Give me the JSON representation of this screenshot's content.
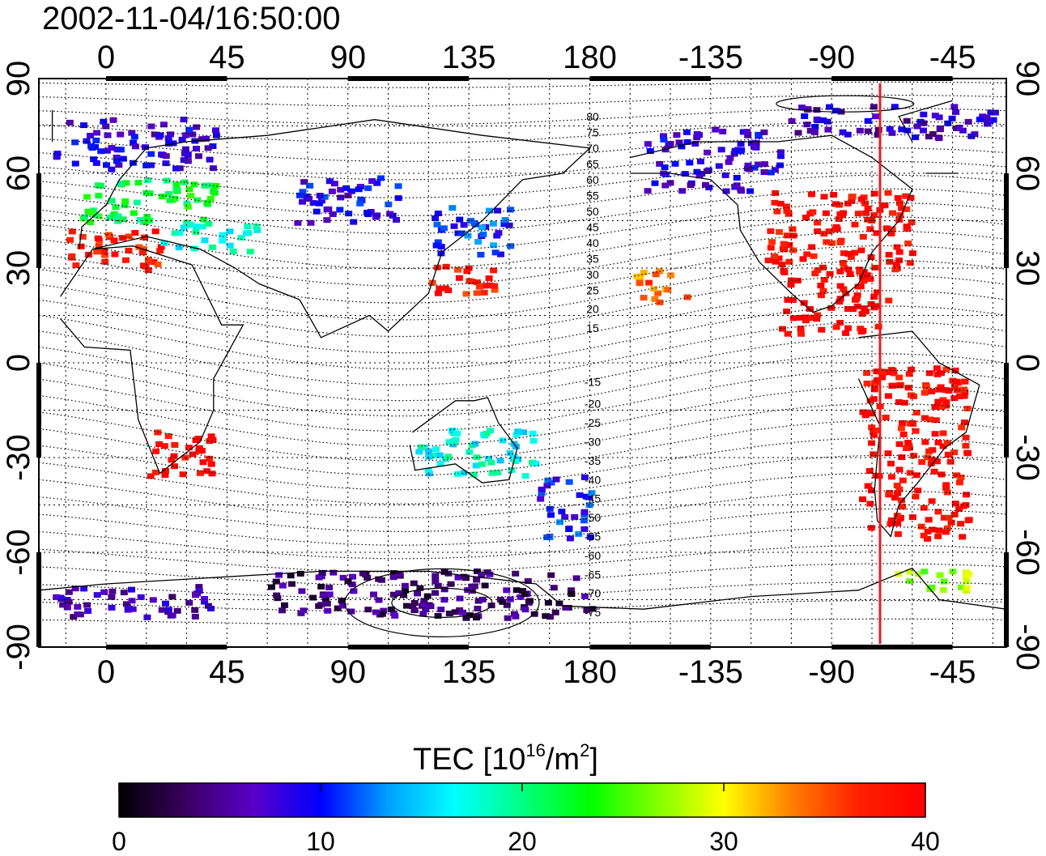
{
  "title": "2002-11-04/16:50:00",
  "map": {
    "x_ticks": [
      "0",
      "45",
      "90",
      "135",
      "180",
      "-135",
      "-90",
      "-45"
    ],
    "y_ticks": [
      "90",
      "60",
      "30",
      "0",
      "-30",
      "-60",
      "-90"
    ],
    "north_contour_labels": [
      "80",
      "75",
      "70",
      "65",
      "60",
      "55",
      "50",
      "45",
      "40",
      "35",
      "30",
      "25",
      "20",
      "15"
    ],
    "south_contour_labels": [
      "-15",
      "-20",
      "-25",
      "-30",
      "-35",
      "-40",
      "-45",
      "-50",
      "-55",
      "-60",
      "-65",
      "-70",
      "-75"
    ],
    "colors": {
      "meridian_line": "#e51e1e",
      "frame": "#000000",
      "grid": "#000000"
    }
  },
  "colorbar": {
    "label_main": "TEC  [10",
    "label_exp": "16",
    "label_unit": "/m",
    "label_exp2": "2",
    "label_close": "]",
    "ticks": [
      "0",
      "10",
      "20",
      "30",
      "40"
    ],
    "stops": [
      "#000000",
      "#3a0060",
      "#5a00c8",
      "#0000ff",
      "#00a0ff",
      "#00ffff",
      "#00ff80",
      "#00ff00",
      "#80ff00",
      "#ffff00",
      "#ff8000",
      "#ff2000",
      "#ff0000"
    ]
  },
  "chart_data": {
    "type": "heatmap",
    "title": "2002-11-04/16:50:00",
    "xlabel": "",
    "ylabel": "",
    "xlim": [
      -25,
      335
    ],
    "ylim": [
      -90,
      90
    ],
    "value_label": "TEC  [10^16/m^2]",
    "vlim": [
      0,
      40
    ],
    "marker_longitude": -70,
    "regions": [
      {
        "lon": [
          -20,
          40
        ],
        "lat": [
          62,
          78
        ],
        "tec": 8
      },
      {
        "lon": [
          -10,
          40
        ],
        "lat": [
          45,
          60
        ],
        "tec": 22
      },
      {
        "lon": [
          -15,
          20
        ],
        "lat": [
          30,
          43
        ],
        "tec": 38
      },
      {
        "lon": [
          20,
          55
        ],
        "lat": [
          36,
          45
        ],
        "tec": 17
      },
      {
        "lon": [
          15,
          40
        ],
        "lat": [
          -35,
          -20
        ],
        "tec": 39
      },
      {
        "lon": [
          70,
          110
        ],
        "lat": [
          45,
          60
        ],
        "tec": 9
      },
      {
        "lon": [
          120,
          150
        ],
        "lat": [
          35,
          50
        ],
        "tec": 11
      },
      {
        "lon": [
          120,
          145
        ],
        "lat": [
          20,
          32
        ],
        "tec": 38
      },
      {
        "lon": [
          115,
          160
        ],
        "lat": [
          -35,
          -20
        ],
        "tec": 17
      },
      {
        "lon": [
          160,
          180
        ],
        "lat": [
          -55,
          -35
        ],
        "tec": 10
      },
      {
        "lon": [
          195,
          215
        ],
        "lat": [
          20,
          30
        ],
        "tec": 34
      },
      {
        "lon": [
          200,
          250
        ],
        "lat": [
          55,
          75
        ],
        "tec": 8
      },
      {
        "lon": [
          245,
          300
        ],
        "lat": [
          30,
          55
        ],
        "tec": 39
      },
      {
        "lon": [
          250,
          290
        ],
        "lat": [
          10,
          30
        ],
        "tec": 40
      },
      {
        "lon": [
          280,
          320
        ],
        "lat": [
          -55,
          0
        ],
        "tec": 39
      },
      {
        "lon": [
          290,
          320
        ],
        "lat": [
          -72,
          -65
        ],
        "tec": 28
      },
      {
        "lon": [
          60,
          180
        ],
        "lat": [
          -80,
          -65
        ],
        "tec": 4
      },
      {
        "lon": [
          -20,
          40
        ],
        "lat": [
          -80,
          -70
        ],
        "tec": 6
      },
      {
        "lon": [
          250,
          330
        ],
        "lat": [
          72,
          82
        ],
        "tec": 7
      }
    ]
  }
}
